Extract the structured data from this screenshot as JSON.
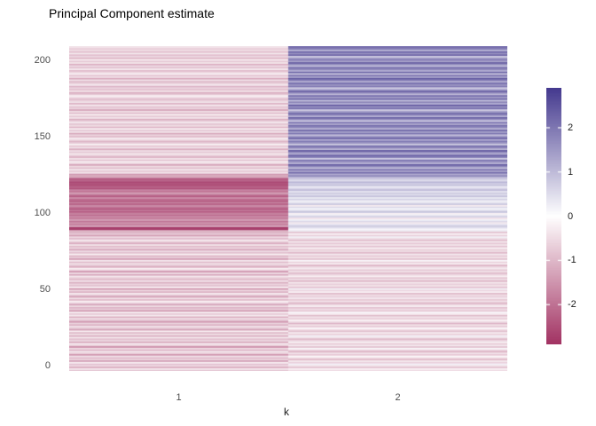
{
  "title": "Principal Component estimate",
  "axes": {
    "x": {
      "title": "k",
      "ticks": [
        "1",
        "2"
      ]
    },
    "y": {
      "ticks": [
        "0",
        "50",
        "100",
        "150",
        "200"
      ]
    }
  },
  "legend": {
    "ticks": [
      "2",
      "1",
      "0",
      "-1",
      "-2"
    ]
  },
  "colors": {
    "background": "#ffffff",
    "title_text": "#000000",
    "axis_text": "#4d4d4d",
    "axis_title_text": "#1a1a1a",
    "legend_text": "#1a1a1a",
    "scale_low": "#a23363",
    "scale_mid": "#ffffff",
    "scale_high": "#453a8f"
  },
  "chart_data": {
    "type": "heatmap",
    "title": "Principal Component estimate",
    "xlabel": "k",
    "ylabel": "",
    "x_categories": [
      1,
      2
    ],
    "n_rows": 207,
    "row_order": "index 0 = bottom row of panel, index 206 = top row",
    "y_axis_ticks": [
      0,
      50,
      100,
      150,
      200
    ],
    "legend_position": "right",
    "grid": false,
    "color_scale": {
      "type": "diverging",
      "low": "#a23363",
      "mid": "#ffffff",
      "high": "#453a8f",
      "domain": [
        -2.9,
        2.9
      ],
      "legend_ticks": [
        2,
        1,
        0,
        -1,
        -2
      ]
    },
    "series": [
      {
        "name": "k=1",
        "values": [
          -0.8,
          -0.3,
          -1.2,
          -0.5,
          -0.9,
          -0.2,
          -1.4,
          -0.6,
          -1.0,
          -0.4,
          -1.5,
          -0.7,
          -0.3,
          -1.1,
          -0.5,
          -1.6,
          -0.7,
          -0.2,
          -1.3,
          -0.6,
          -0.9,
          -0.3,
          -1.2,
          -0.5,
          -1.0,
          -0.2,
          -1.4,
          -0.8,
          -0.4,
          -1.1,
          -0.6,
          -1.5,
          -0.9,
          -0.4,
          -1.2,
          -0.3,
          -0.8,
          -0.2,
          -1.5,
          -0.7,
          -1.1,
          -0.5,
          -1.3,
          -0.6,
          -0.2,
          -1.0,
          -0.4,
          -1.4,
          -0.8,
          -0.3,
          -1.1,
          -0.5,
          -1.6,
          -0.2,
          -0.9,
          -0.6,
          -1.2,
          -0.4,
          -1.0,
          -0.7,
          -0.3,
          -1.3,
          -0.5,
          -1.5,
          -0.6,
          -0.2,
          -1.2,
          -0.8,
          -0.4,
          -1.0,
          -0.3,
          -1.4,
          -0.7,
          -1.1,
          -0.2,
          -0.9,
          -0.5,
          -1.3,
          -0.6,
          -1.0,
          -0.4,
          -1.2,
          -0.7,
          -0.3,
          -1.0,
          -0.5,
          -1.4,
          -0.8,
          -1.1,
          -1.0,
          -2.8,
          -2.8,
          -1.3,
          -1.8,
          -1.5,
          -2.0,
          -1.4,
          -1.9,
          -1.6,
          -2.1,
          -1.8,
          -2.3,
          -1.9,
          -2.4,
          -2.0,
          -1.7,
          -2.2,
          -1.8,
          -2.4,
          -2.1,
          -1.6,
          -2.3,
          -1.9,
          -1.4,
          -2.0,
          -1.7,
          -2.5,
          -2.3,
          -2.6,
          -2.4,
          -2.6,
          -2.2,
          -2.5,
          -1.5,
          -1.1,
          -1.5,
          -0.4,
          -0.8,
          -0.3,
          -1.0,
          -0.5,
          -1.3,
          -0.6,
          -0.2,
          -0.9,
          -0.4,
          -1.1,
          -0.7,
          -0.3,
          -0.8,
          -0.5,
          -1.2,
          -0.4,
          -0.9,
          -0.2,
          -0.7,
          -1.1,
          -0.5,
          -0.3,
          -1.0,
          -0.6,
          -1.3,
          -0.4,
          -0.8,
          -0.2,
          -1.1,
          -0.5,
          -0.9,
          -0.3,
          -0.7,
          -1.2,
          -0.4,
          -0.8,
          -0.2,
          -1.0,
          -0.5,
          -1.3,
          -0.6,
          -0.9,
          -0.3,
          -1.1,
          -0.4,
          -0.7,
          -1.0,
          -0.5,
          -0.2,
          -0.8,
          -1.2,
          -0.4,
          -0.9,
          -0.6,
          -1.1,
          -0.3,
          -0.7,
          -1.0,
          -0.4,
          -1.3,
          -0.5,
          -0.8,
          -0.2,
          -0.6,
          -1.0,
          -0.3,
          -0.9,
          -0.5,
          -1.2,
          -0.4,
          -0.8,
          -0.2,
          -1.1,
          -0.6,
          -0.9,
          -0.3,
          -1.0,
          -0.5,
          -0.7,
          -0.4
        ]
      },
      {
        "name": "k=2",
        "values": [
          -0.5,
          -0.2,
          -0.9,
          -0.4,
          0.2,
          -0.7,
          -0.3,
          -1.0,
          -0.5,
          -0.1,
          -0.8,
          -0.4,
          -1.1,
          -0.6,
          0.1,
          -0.9,
          -0.3,
          -0.8,
          -0.2,
          -0.6,
          -1.0,
          -0.4,
          0.2,
          -0.7,
          -0.3,
          -0.9,
          -0.5,
          -0.1,
          -0.8,
          -0.4,
          -1.1,
          -0.5,
          -0.2,
          -0.7,
          -0.4,
          -1.0,
          -0.3,
          0.1,
          -0.8,
          -0.5,
          -0.9,
          -0.2,
          -0.6,
          -1.1,
          -0.4,
          -0.8,
          -0.3,
          -0.7,
          -0.5,
          -1.0,
          -0.2,
          -0.6,
          0.2,
          -0.9,
          -0.4,
          -0.7,
          -0.3,
          -1.1,
          -0.5,
          -0.8,
          -0.2,
          -0.6,
          -1.0,
          -0.4,
          -0.8,
          -0.3,
          -0.6,
          -1.1,
          -0.2,
          -0.7,
          0.1,
          -0.9,
          -0.4,
          -0.8,
          -0.3,
          -1.0,
          -0.5,
          -0.7,
          -0.2,
          -0.9,
          -0.4,
          -0.8,
          -0.3,
          -1.0,
          -0.5,
          0.2,
          -0.7,
          -0.2,
          -0.9,
          0.3,
          0.1,
          0.5,
          0.8,
          0.4,
          -0.3,
          0.6,
          0.2,
          -0.4,
          0.7,
          0.3,
          -0.2,
          0.9,
          0.5,
          0.1,
          0.6,
          -0.3,
          0.8,
          0.4,
          0.2,
          0.7,
          0.3,
          0.9,
          0.5,
          0.8,
          0.4,
          1.0,
          0.6,
          0.3,
          0.9,
          0.7,
          1.1,
          0.5,
          0.8,
          1.0,
          1.8,
          1.2,
          2.2,
          1.4,
          2.0,
          0.9,
          1.8,
          2.4,
          1.1,
          1.6,
          2.1,
          0.7,
          1.9,
          2.3,
          1.2,
          1.7,
          2.5,
          1.0,
          1.8,
          2.2,
          0.8,
          1.5,
          2.0,
          1.2,
          2.4,
          1.6,
          0.9,
          2.1,
          1.4,
          2.3,
          1.0,
          1.8,
          2.2,
          1.3,
          2.0,
          0.7,
          1.7,
          2.4,
          1.1,
          1.9,
          2.2,
          1.4,
          0.8,
          2.1,
          1.6,
          2.5,
          1.2,
          1.8,
          0.9,
          2.3,
          1.5,
          2.1,
          1.0,
          1.8,
          2.4,
          1.3,
          0.7,
          2.0,
          1.6,
          2.2,
          1.1,
          1.9,
          2.5,
          1.4,
          2.0,
          0.8,
          2.3,
          1.2,
          1.8,
          2.1,
          0.9,
          1.7,
          2.4,
          1.3,
          2.0,
          1.5,
          0.8,
          2.2,
          1.6,
          2.4,
          1.1,
          1.9,
          2.1
        ]
      }
    ]
  },
  "layout_note": ""
}
